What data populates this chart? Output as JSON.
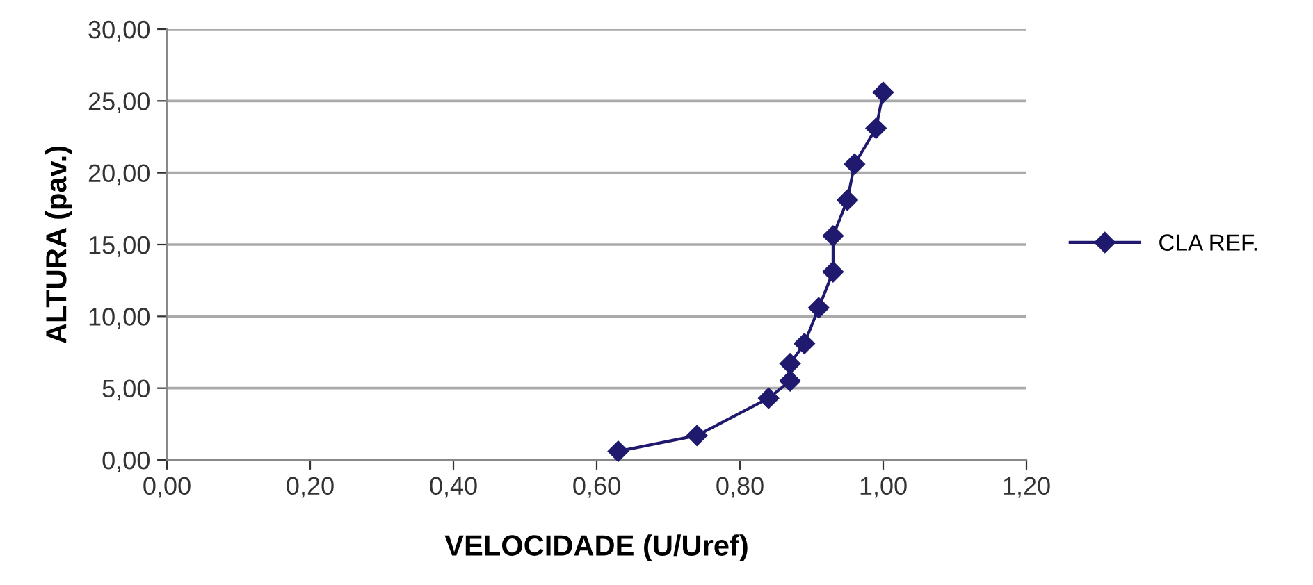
{
  "chart_data": {
    "type": "line",
    "xlabel": "VELOCIDADE (U/Uref)",
    "ylabel": "ALTURA (pav.)",
    "x": [
      0.63,
      0.74,
      0.84,
      0.87,
      0.87,
      0.89,
      0.91,
      0.93,
      0.93,
      0.95,
      0.96,
      0.99,
      1.0
    ],
    "series": [
      {
        "name": "CLA REF.",
        "color": "#1f1a6e",
        "values": [
          0.6,
          1.7,
          4.3,
          5.5,
          6.7,
          8.1,
          10.6,
          13.1,
          15.6,
          18.1,
          20.6,
          23.1,
          25.6
        ]
      }
    ],
    "xlim": [
      0,
      1.2
    ],
    "xticks": [
      {
        "value": 0,
        "label": "0,00"
      },
      {
        "value": 0.2,
        "label": "0,20"
      },
      {
        "value": 0.4,
        "label": "0,40"
      },
      {
        "value": 0.6,
        "label": "0,60"
      },
      {
        "value": 0.8,
        "label": "0,80"
      },
      {
        "value": 1.0,
        "label": "1,00"
      },
      {
        "value": 1.2,
        "label": "1,20"
      }
    ],
    "ylim": [
      0,
      30
    ],
    "yticks": [
      {
        "value": 0,
        "label": "0,00"
      },
      {
        "value": 5,
        "label": "5,00"
      },
      {
        "value": 10,
        "label": "10,00"
      },
      {
        "value": 15,
        "label": "15,00"
      },
      {
        "value": 20,
        "label": "20,00"
      },
      {
        "value": 25,
        "label": "25,00"
      },
      {
        "value": 30,
        "label": "30,00"
      }
    ],
    "grid": "y",
    "legend": "right",
    "marker": "diamond",
    "line_style": "solid"
  }
}
